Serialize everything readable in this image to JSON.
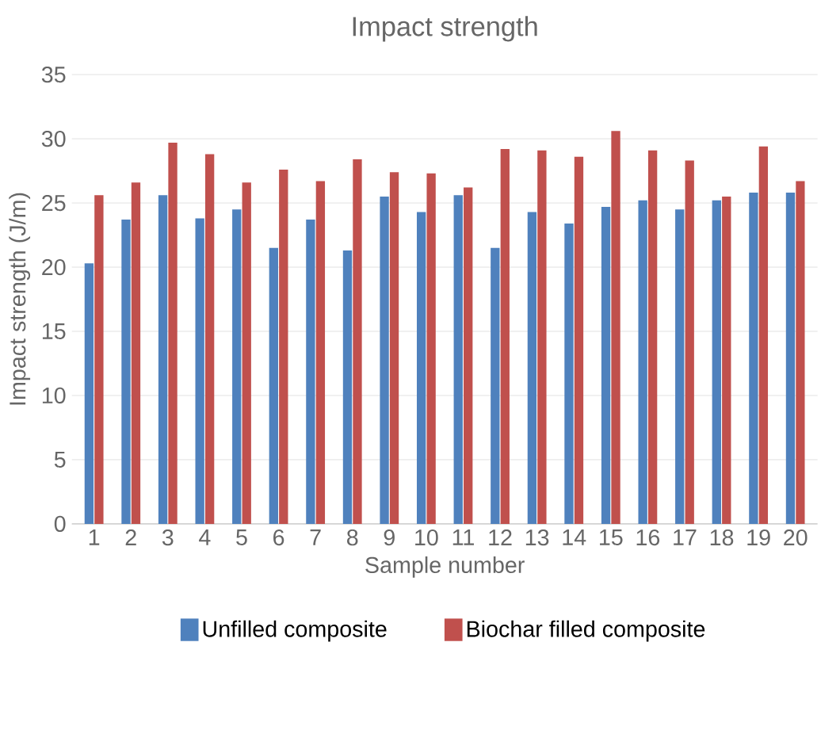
{
  "chart_data": {
    "type": "bar",
    "title": "Impact strength",
    "xlabel": "Sample number",
    "ylabel": "Impact strength (J/m)",
    "categories": [
      "1",
      "2",
      "3",
      "4",
      "5",
      "6",
      "7",
      "8",
      "9",
      "10",
      "11",
      "12",
      "13",
      "14",
      "15",
      "16",
      "17",
      "18",
      "19",
      "20"
    ],
    "series": [
      {
        "name": "Unfilled composite",
        "color": "#4f81bd",
        "values": [
          20.3,
          23.7,
          25.6,
          23.8,
          24.5,
          21.5,
          23.7,
          21.3,
          25.5,
          24.3,
          25.6,
          21.5,
          24.3,
          23.4,
          24.7,
          25.2,
          24.5,
          25.2,
          25.8,
          25.8
        ]
      },
      {
        "name": "Biochar filled composite",
        "color": "#c0504d",
        "values": [
          25.6,
          26.6,
          29.7,
          28.8,
          26.6,
          27.6,
          26.7,
          28.4,
          27.4,
          27.3,
          26.2,
          29.2,
          29.1,
          28.6,
          30.6,
          29.1,
          28.3,
          25.5,
          29.4,
          26.7
        ]
      }
    ],
    "ylim": [
      0,
      35
    ],
    "yticks": [
      0,
      5,
      10,
      15,
      20,
      25,
      30,
      35
    ],
    "grid": "y",
    "legend": "bottom"
  }
}
